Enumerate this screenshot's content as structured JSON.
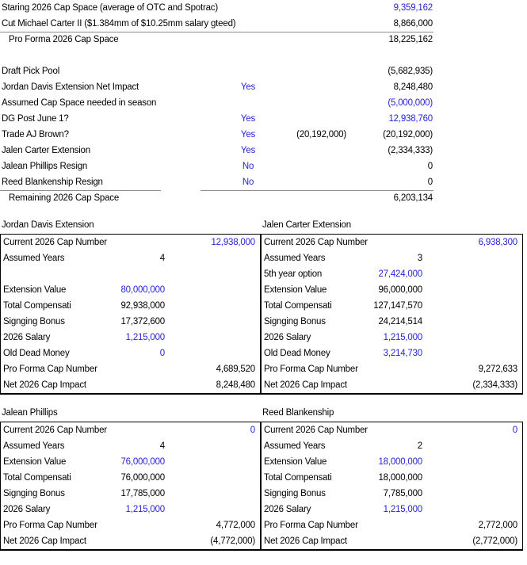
{
  "colors": {
    "input_value_blue": "#2525d5",
    "computed_value_black": "#000000",
    "separator_gray": "#8c8c8c",
    "table_border_black": "#000000",
    "background_white": "#ffffff"
  },
  "summary": {
    "rows": [
      {
        "label": "Staring 2026 Cap Space (average of OTC and Spotrac)",
        "value": "9,359,162"
      },
      {
        "label": "Cut Michael Carter II ($1.384mm of $10.25mm salary gteed)",
        "value": "8,866,000"
      },
      {
        "label": "Pro Forma 2026 Cap Space",
        "value": "18,225,162"
      },
      {
        "label": ""
      },
      {
        "label": "Draft Pick Pool",
        "value": "(5,682,935)"
      },
      {
        "label": "Jordan Davis Extension Net Impact",
        "toggle": "Yes",
        "value": "8,248,480"
      },
      {
        "label": "Assumed Cap Space needed in season",
        "value": "(5,000,000)"
      },
      {
        "label": "DG Post June 1?",
        "toggle": "Yes",
        "value": "12,938,760"
      },
      {
        "label": "Trade AJ Brown?",
        "toggle": "Yes",
        "mid": "(20,192,000)",
        "value": "(20,192,000)"
      },
      {
        "label": "Jalen Carter Extension",
        "toggle": "Yes",
        "value": "(2,334,333)"
      },
      {
        "label": "Jalean Phillips Resign",
        "toggle": "No",
        "value": "0"
      },
      {
        "label": "Reed Blankenship Resign",
        "toggle": "No",
        "value": "0"
      },
      {
        "label": "Remaining 2026 Cap Space",
        "value": "6,203,134"
      }
    ]
  },
  "tables": {
    "jordan_davis": {
      "title": "Jordan Davis Extension",
      "rows": [
        {
          "label": "Current 2026 Cap Number",
          "right": "12,938,000"
        },
        {
          "label": "Assumed Years",
          "mid": "4"
        },
        {
          "label": ""
        },
        {
          "label": "Extension Value",
          "mid": "80,000,000"
        },
        {
          "label": "Total Compensati",
          "mid": "92,938,000"
        },
        {
          "label": "Signging Bonus",
          "mid": "17,372,600"
        },
        {
          "label": "2026 Salary",
          "mid": "1,215,000"
        },
        {
          "label": "Old Dead Money",
          "mid": "0"
        },
        {
          "label": "Pro Forma Cap Number",
          "right": "4,689,520"
        },
        {
          "label": "Net 2026 Cap Impact",
          "right": "8,248,480"
        }
      ]
    },
    "jalen_carter": {
      "title": "Jalen Carter Extension",
      "rows": [
        {
          "label": "Current 2026 Cap Number",
          "right": "6,938,300"
        },
        {
          "label": "Assumed Years",
          "mid": "3"
        },
        {
          "label": "5th year option",
          "mid": "27,424,000"
        },
        {
          "label": "Extension Value",
          "mid": "96,000,000"
        },
        {
          "label": "Total Compensati",
          "mid": "127,147,570"
        },
        {
          "label": "Signging Bonus",
          "mid": "24,214,514"
        },
        {
          "label": "2026 Salary",
          "mid": "1,215,000"
        },
        {
          "label": "Old Dead Money",
          "mid": "3,214,730"
        },
        {
          "label": "Pro Forma Cap Number",
          "right": "9,272,633"
        },
        {
          "label": "Net 2026 Cap Impact",
          "right": "(2,334,333)"
        }
      ]
    },
    "jalean_phillips": {
      "title": "Jalean Phillips",
      "rows": [
        {
          "label": "Current 2026 Cap Number",
          "right": "0"
        },
        {
          "label": "Assumed Years",
          "mid": "4"
        },
        {
          "label": "Extension Value",
          "mid": "76,000,000"
        },
        {
          "label": "Total Compensati",
          "mid": "76,000,000"
        },
        {
          "label": "Signging Bonus",
          "mid": "17,785,000"
        },
        {
          "label": "2026 Salary",
          "mid": "1,215,000"
        },
        {
          "label": "Pro Forma Cap Number",
          "right": "4,772,000"
        },
        {
          "label": "Net 2026 Cap Impact",
          "right": "(4,772,000)"
        }
      ]
    },
    "reed_blankenship": {
      "title": "Reed Blankenship",
      "rows": [
        {
          "label": "Current 2026 Cap Number",
          "right": "0"
        },
        {
          "label": "Assumed Years",
          "mid": "2"
        },
        {
          "label": "Extension Value",
          "mid": "18,000,000"
        },
        {
          "label": "Total Compensati",
          "mid": "18,000,000"
        },
        {
          "label": "Signging Bonus",
          "mid": "7,785,000"
        },
        {
          "label": "2026 Salary",
          "mid": "1,215,000"
        },
        {
          "label": "Pro Forma Cap Number",
          "right": "2,772,000"
        },
        {
          "label": "Net 2026 Cap Impact",
          "right": "(2,772,000)"
        }
      ]
    }
  }
}
